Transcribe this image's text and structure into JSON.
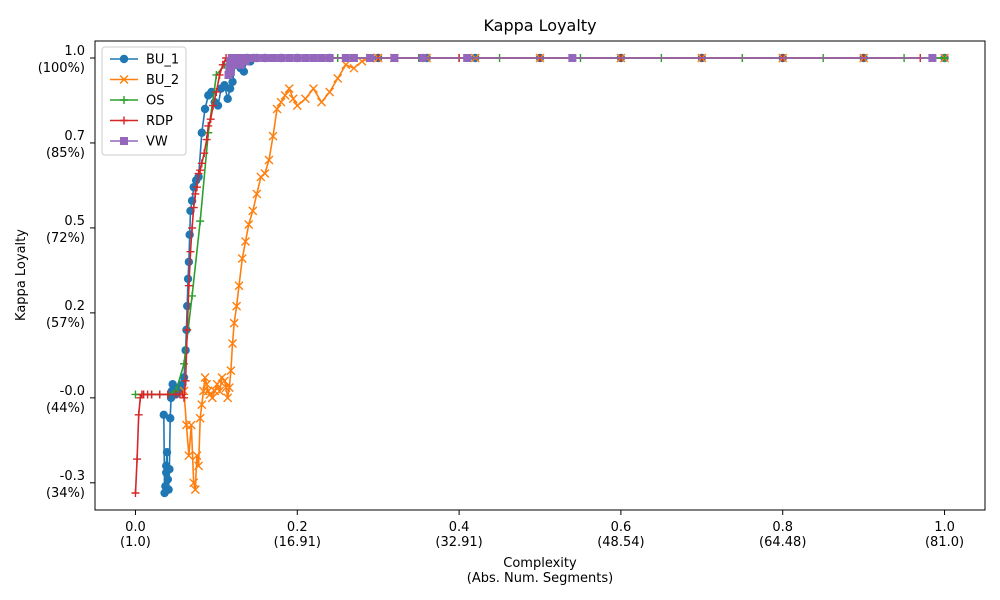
{
  "chart_data": {
    "type": "line",
    "title": "Kappa Loyalty",
    "xlabel_line1": "Complexity",
    "xlabel_line2": "(Abs. Num. Segments)",
    "ylabel": "Kappa Loyalty",
    "xlim": [
      -0.05,
      1.05
    ],
    "ylim": [
      -0.33,
      1.05
    ],
    "x_ticks": [
      {
        "value": 0.0,
        "label": "0.0",
        "sub": "(1.0)"
      },
      {
        "value": 0.2,
        "label": "0.2",
        "sub": "(16.91)"
      },
      {
        "value": 0.4,
        "label": "0.4",
        "sub": "(32.91)"
      },
      {
        "value": 0.6,
        "label": "0.6",
        "sub": "(48.54)"
      },
      {
        "value": 0.8,
        "label": "0.8",
        "sub": "(64.48)"
      },
      {
        "value": 1.0,
        "label": "1.0",
        "sub": "(81.0)"
      }
    ],
    "y_ticks": [
      {
        "value": 1.0,
        "label": "1.0",
        "sub": "(100%)"
      },
      {
        "value": 0.75,
        "label": "0.7",
        "sub": "(85%)"
      },
      {
        "value": 0.5,
        "label": "0.5",
        "sub": "(72%)"
      },
      {
        "value": 0.25,
        "label": "0.2",
        "sub": "(57%)"
      },
      {
        "value": 0.0,
        "label": "-0.0",
        "sub": "(44%)"
      },
      {
        "value": -0.25,
        "label": "-0.3",
        "sub": "(34%)"
      }
    ],
    "legend_position": "top-left",
    "series": [
      {
        "name": "BU_1",
        "color": "#1f77b4",
        "marker": "circle",
        "x": [
          0.035,
          0.036,
          0.037,
          0.038,
          0.038,
          0.039,
          0.04,
          0.041,
          0.042,
          0.043,
          0.044,
          0.045,
          0.046,
          0.048,
          0.05,
          0.052,
          0.054,
          0.056,
          0.058,
          0.06,
          0.062,
          0.063,
          0.064,
          0.065,
          0.066,
          0.067,
          0.068,
          0.07,
          0.072,
          0.075,
          0.078,
          0.082,
          0.086,
          0.09,
          0.094,
          0.098,
          0.102,
          0.106,
          0.11,
          0.114,
          0.117,
          0.12,
          0.123,
          0.126,
          0.13,
          0.134,
          0.138,
          0.142,
          0.146,
          0.15,
          0.16,
          0.18,
          0.2,
          0.24,
          0.3,
          0.36,
          0.42,
          0.5,
          0.6,
          0.7,
          0.8,
          0.9,
          1.0
        ],
        "y": [
          -0.05,
          -0.28,
          -0.26,
          -0.22,
          -0.2,
          -0.16,
          -0.24,
          -0.27,
          -0.21,
          -0.06,
          0.0,
          0.02,
          0.04,
          0.02,
          0.01,
          0.03,
          0.02,
          0.03,
          0.04,
          0.06,
          0.14,
          0.2,
          0.27,
          0.35,
          0.4,
          0.48,
          0.55,
          0.58,
          0.62,
          0.64,
          0.65,
          0.78,
          0.85,
          0.89,
          0.9,
          0.87,
          0.86,
          0.91,
          0.92,
          0.88,
          0.91,
          0.93,
          0.98,
          0.99,
          0.97,
          0.96,
          1.0,
          0.99,
          1.0,
          1.0,
          1.0,
          1.0,
          1.0,
          1.0,
          1.0,
          1.0,
          1.0,
          1.0,
          1.0,
          1.0,
          1.0,
          1.0,
          1.0
        ]
      },
      {
        "name": "BU_2",
        "color": "#ff7f0e",
        "marker": "x",
        "x": [
          0.06,
          0.063,
          0.066,
          0.069,
          0.072,
          0.074,
          0.076,
          0.078,
          0.08,
          0.082,
          0.084,
          0.086,
          0.088,
          0.09,
          0.092,
          0.095,
          0.098,
          0.101,
          0.104,
          0.107,
          0.11,
          0.112,
          0.114,
          0.116,
          0.118,
          0.12,
          0.122,
          0.125,
          0.128,
          0.132,
          0.136,
          0.14,
          0.145,
          0.15,
          0.155,
          0.16,
          0.165,
          0.17,
          0.175,
          0.18,
          0.185,
          0.19,
          0.195,
          0.2,
          0.21,
          0.22,
          0.23,
          0.24,
          0.25,
          0.26,
          0.27,
          0.28,
          0.29,
          0.3,
          0.32,
          0.36,
          0.42,
          0.5,
          0.6,
          0.7,
          0.8,
          0.9,
          1.0
        ],
        "y": [
          0.02,
          -0.08,
          -0.17,
          -0.08,
          -0.25,
          -0.27,
          -0.17,
          -0.2,
          -0.06,
          -0.02,
          0.02,
          0.06,
          0.04,
          0.02,
          0.01,
          0.0,
          0.02,
          0.04,
          0.02,
          0.06,
          0.05,
          0.03,
          0.0,
          0.03,
          0.08,
          0.16,
          0.22,
          0.27,
          0.33,
          0.41,
          0.46,
          0.51,
          0.55,
          0.6,
          0.65,
          0.66,
          0.7,
          0.77,
          0.85,
          0.87,
          0.89,
          0.91,
          0.88,
          0.86,
          0.88,
          0.91,
          0.87,
          0.9,
          0.94,
          0.98,
          0.97,
          0.99,
          1.0,
          1.0,
          1.0,
          1.0,
          1.0,
          1.0,
          1.0,
          1.0,
          1.0,
          1.0,
          1.0
        ]
      },
      {
        "name": "OS",
        "color": "#2ca02c",
        "marker": "plus",
        "x": [
          0.0,
          0.01,
          0.02,
          0.03,
          0.04,
          0.05,
          0.06,
          0.07,
          0.08,
          0.09,
          0.1,
          0.11,
          0.12,
          0.13,
          0.14,
          0.15,
          0.16,
          0.2,
          0.25,
          0.3,
          0.35,
          0.4,
          0.45,
          0.5,
          0.55,
          0.6,
          0.65,
          0.7,
          0.75,
          0.8,
          0.85,
          0.9,
          0.95,
          1.0
        ],
        "y": [
          0.01,
          0.01,
          0.01,
          0.01,
          0.01,
          0.02,
          0.1,
          0.3,
          0.52,
          0.78,
          0.95,
          0.98,
          0.99,
          0.99,
          1.0,
          1.0,
          1.0,
          1.0,
          1.0,
          1.0,
          1.0,
          1.0,
          1.0,
          1.0,
          1.0,
          1.0,
          1.0,
          1.0,
          1.0,
          1.0,
          1.0,
          1.0,
          1.0,
          1.0
        ]
      },
      {
        "name": "RDP",
        "color": "#d62728",
        "marker": "plus",
        "x": [
          0.0,
          0.002,
          0.004,
          0.006,
          0.008,
          0.01,
          0.015,
          0.02,
          0.03,
          0.04,
          0.05,
          0.055,
          0.058,
          0.06,
          0.062,
          0.064,
          0.066,
          0.068,
          0.07,
          0.072,
          0.074,
          0.076,
          0.078,
          0.08,
          0.082,
          0.085,
          0.088,
          0.09,
          0.093,
          0.096,
          0.1,
          0.104,
          0.108,
          0.112,
          0.116,
          0.12,
          0.125,
          0.13,
          0.135,
          0.14,
          0.145,
          0.15,
          0.2,
          0.3,
          0.4,
          0.5,
          0.6,
          0.7,
          0.8,
          0.9,
          0.97
        ],
        "y": [
          -0.28,
          -0.18,
          -0.05,
          0.0,
          0.01,
          0.01,
          0.01,
          0.01,
          0.01,
          0.01,
          0.01,
          0.01,
          0.01,
          0.0,
          0.05,
          0.2,
          0.33,
          0.43,
          0.5,
          0.56,
          0.6,
          0.62,
          0.66,
          0.67,
          0.69,
          0.72,
          0.76,
          0.8,
          0.82,
          0.86,
          0.9,
          0.95,
          0.98,
          1.0,
          0.99,
          1.0,
          0.99,
          1.0,
          1.0,
          0.99,
          1.0,
          1.0,
          1.0,
          1.0,
          1.0,
          1.0,
          1.0,
          1.0,
          1.0,
          1.0,
          1.0
        ]
      },
      {
        "name": "VW",
        "color": "#9467bd",
        "marker": "square",
        "x": [
          0.115,
          0.116,
          0.117,
          0.118,
          0.119,
          0.12,
          0.122,
          0.124,
          0.126,
          0.128,
          0.13,
          0.133,
          0.136,
          0.14,
          0.145,
          0.15,
          0.16,
          0.17,
          0.18,
          0.19,
          0.2,
          0.21,
          0.22,
          0.23,
          0.24,
          0.26,
          0.27,
          0.29,
          0.32,
          0.355,
          0.41,
          0.54,
          0.985
        ],
        "y": [
          0.95,
          0.97,
          0.99,
          0.96,
          1.0,
          0.98,
          1.0,
          0.99,
          1.0,
          1.0,
          0.98,
          1.0,
          0.99,
          1.0,
          1.0,
          1.0,
          1.0,
          1.0,
          1.0,
          1.0,
          1.0,
          1.0,
          1.0,
          1.0,
          1.0,
          1.0,
          1.0,
          1.0,
          1.0,
          1.0,
          1.0,
          1.0,
          1.0
        ]
      }
    ]
  }
}
